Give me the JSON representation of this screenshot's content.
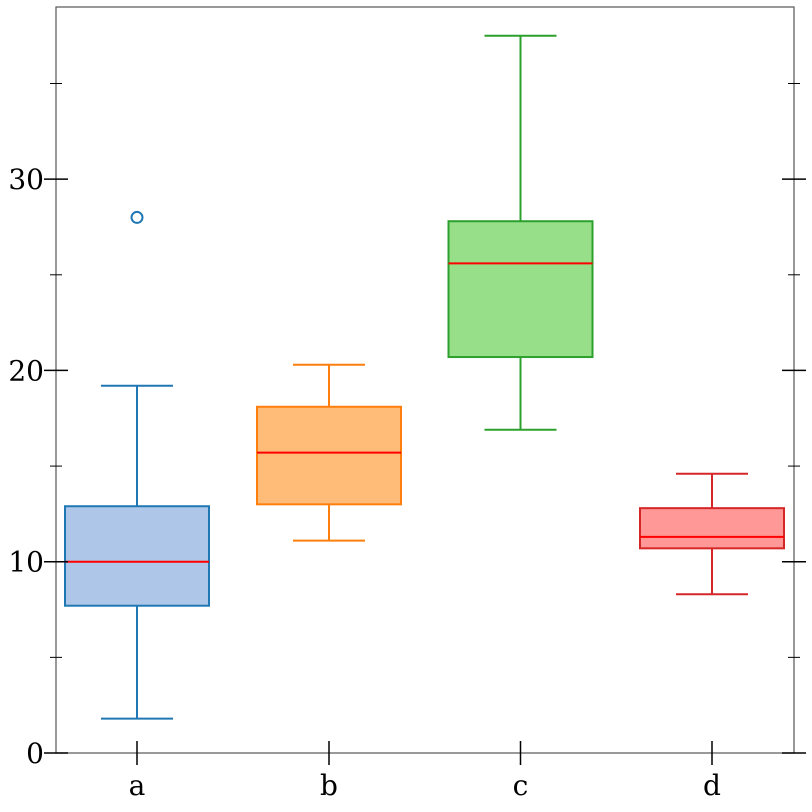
{
  "chart_data": {
    "type": "box",
    "title": "",
    "xlabel": "",
    "ylabel": "",
    "categories": [
      "a",
      "b",
      "c",
      "d"
    ],
    "ylim": [
      0,
      39
    ],
    "y_ticks": [
      0,
      10,
      20,
      30
    ],
    "y_minor_ticks": [
      5,
      15,
      25,
      35
    ],
    "grid": false,
    "boxes": [
      {
        "category": "a",
        "whisker_low": 1.8,
        "q1": 7.7,
        "median": 10.0,
        "q3": 12.9,
        "whisker_high": 19.2,
        "outliers": [
          28.0
        ],
        "stroke": "#1f77b4",
        "fill": "#aec7e8"
      },
      {
        "category": "b",
        "whisker_low": 11.1,
        "q1": 13.0,
        "median": 15.7,
        "q3": 18.1,
        "whisker_high": 20.3,
        "outliers": [],
        "stroke": "#ff7f0e",
        "fill": "#ffbb78"
      },
      {
        "category": "c",
        "whisker_low": 16.9,
        "q1": 20.7,
        "median": 25.6,
        "q3": 27.8,
        "whisker_high": 37.5,
        "outliers": [],
        "stroke": "#2ca02c",
        "fill": "#98df8a"
      },
      {
        "category": "d",
        "whisker_low": 8.3,
        "q1": 10.7,
        "median": 11.3,
        "q3": 12.8,
        "whisker_high": 14.6,
        "outliers": [],
        "stroke": "#d62728",
        "fill": "#ff9896"
      }
    ],
    "median_color": "#ff0000",
    "axis_color": "#000000",
    "frame_color": "#555555"
  }
}
